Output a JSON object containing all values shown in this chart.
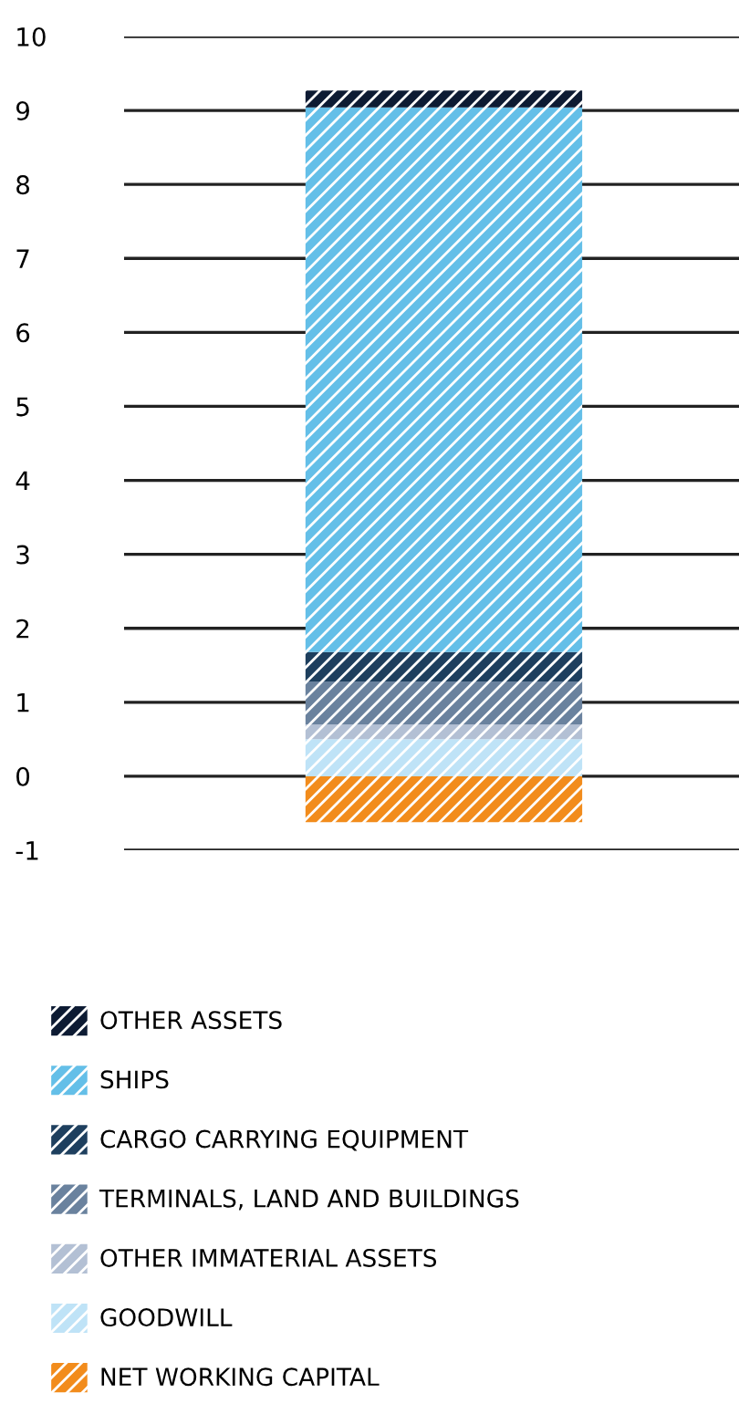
{
  "chart_data": {
    "type": "bar",
    "stacked": true,
    "categories": [
      null
    ],
    "series": [
      {
        "name": "NET WORKING CAPITAL",
        "color": "#f28c1c",
        "values": [
          -0.62
        ]
      },
      {
        "name": "GOODWILL",
        "color": "#bfe3f7",
        "values": [
          0.5
        ]
      },
      {
        "name": "OTHER IMMATERIAL ASSETS",
        "color": "#b3c0d4",
        "values": [
          0.2
        ]
      },
      {
        "name": "TERMINALS, LAND AND BUILDINGS",
        "color": "#6a829e",
        "values": [
          0.58
        ]
      },
      {
        "name": "CARGO CARRYING EQUIPMENT",
        "color": "#1e3f5e",
        "values": [
          0.4
        ]
      },
      {
        "name": "SHIPS",
        "color": "#64bfe8",
        "values": [
          7.36
        ]
      },
      {
        "name": "OTHER ASSETS",
        "color": "#0d1b33",
        "values": [
          0.23
        ]
      }
    ],
    "ylim": [
      -1,
      10
    ],
    "yticks": [
      -1,
      0,
      1,
      2,
      3,
      4,
      5,
      6,
      7,
      8,
      9,
      10
    ],
    "grid": "y",
    "legend": "bottom",
    "tick_labels": "y"
  }
}
